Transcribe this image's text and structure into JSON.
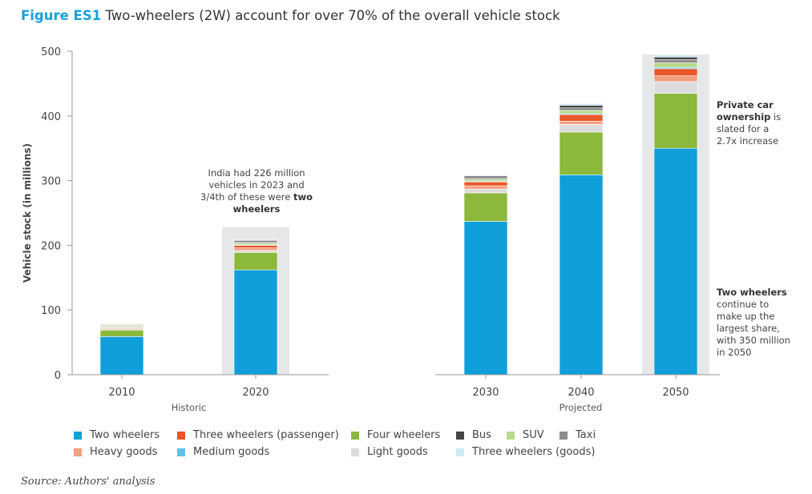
{
  "figure_label": "Figure ES1",
  "figure_title": "Two-wheelers (2W) account for over 70% of the overall vehicle stock",
  "source": "Source: Authors' analysis",
  "annotations": {
    "india_2023_pre": "India had 226 million vehicles in 2023 and 3/4th of these were",
    "india_2023_bold": "two wheelers",
    "private_car_bold": "Private car ownership",
    "private_car_rest": "is slated for a 2.7x increase",
    "two_wheelers_bold": "Two wheelers",
    "two_wheelers_rest": "continue to make up the largest share, with 350 million in 2050"
  },
  "chart_data": {
    "type": "bar",
    "stacked": true,
    "ylabel": "Vehicle stock (in millions)",
    "ylim": [
      0,
      500
    ],
    "yticks": [
      0,
      100,
      200,
      300,
      400,
      500
    ],
    "categories": [
      "2010",
      "2020",
      "2030",
      "2040",
      "2050"
    ],
    "groups": [
      {
        "label": "Historic",
        "categories": [
          "2010",
          "2020"
        ]
      },
      {
        "label": "Projected",
        "categories": [
          "2030",
          "2040",
          "2050"
        ]
      }
    ],
    "highlighted": [
      "2020",
      "2050"
    ],
    "series": [
      {
        "name": "Two wheelers",
        "color": "#0fa0db",
        "values": [
          59,
          162,
          237,
          309,
          350
        ]
      },
      {
        "name": "Four wheelers",
        "color": "#8cb83c",
        "values": [
          10,
          27,
          44,
          66,
          85
        ]
      },
      {
        "name": "Light goods",
        "color": "#dcdcdc",
        "values": [
          2,
          3,
          6,
          12,
          18
        ]
      },
      {
        "name": "Heavy goods",
        "color": "#f3a07e",
        "values": [
          1.5,
          4,
          5,
          5,
          9
        ]
      },
      {
        "name": "Three wheelers (passenger)",
        "color": "#e9572b",
        "values": [
          1.5,
          4,
          6,
          10,
          11
        ]
      },
      {
        "name": "Medium goods",
        "color": "#5fc2e8",
        "values": [
          0.5,
          1,
          1,
          1.5,
          2
        ]
      },
      {
        "name": "SUV",
        "color": "#b7d98c",
        "values": [
          2,
          2.5,
          3,
          5,
          7
        ]
      },
      {
        "name": "Taxi",
        "color": "#8c8c8c",
        "values": [
          1,
          2,
          2.5,
          4,
          5
        ]
      },
      {
        "name": "Bus",
        "color": "#444444",
        "values": [
          1,
          2,
          2.5,
          4,
          4
        ]
      },
      {
        "name": "Three wheelers (goods)",
        "color": "#cdeaf6",
        "values": [
          0.5,
          1,
          1.5,
          2.5,
          3
        ]
      }
    ],
    "legend": [
      "Two wheelers",
      "Three wheelers (passenger)",
      "Four wheelers",
      "Bus",
      "SUV",
      "Taxi",
      "Heavy goods",
      "Medium goods",
      "Light goods",
      "Three wheelers (goods)"
    ]
  }
}
